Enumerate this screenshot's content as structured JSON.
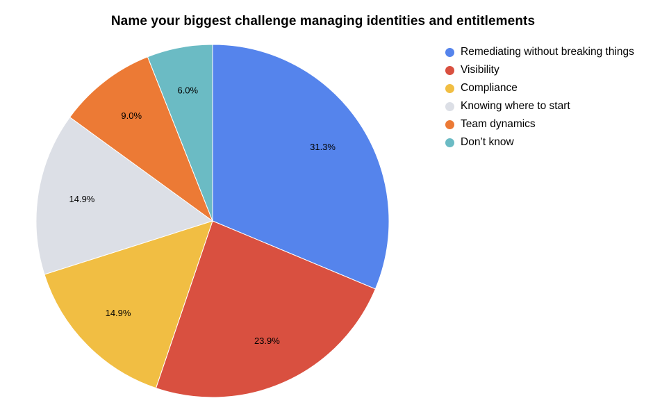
{
  "chart_data": {
    "type": "pie",
    "title": "Name your biggest challenge managing identities and entitlements",
    "legend_position": "right",
    "slices": [
      {
        "label": "Remediating without breaking things",
        "value": 31.3,
        "display": "31.3%",
        "color": "#5584ec"
      },
      {
        "label": "Visibility",
        "value": 23.9,
        "display": "23.9%",
        "color": "#d95040"
      },
      {
        "label": "Compliance",
        "value": 14.9,
        "display": "14.9%",
        "color": "#f1be43"
      },
      {
        "label": "Knowing where to start",
        "value": 14.9,
        "display": "14.9%",
        "color": "#dcdfe6"
      },
      {
        "label": "Team dynamics",
        "value": 9.0,
        "display": "9.0%",
        "color": "#ec7a35"
      },
      {
        "label": "Don’t know",
        "value": 6.0,
        "display": "6.0%",
        "color": "#6bbbc4"
      }
    ]
  }
}
